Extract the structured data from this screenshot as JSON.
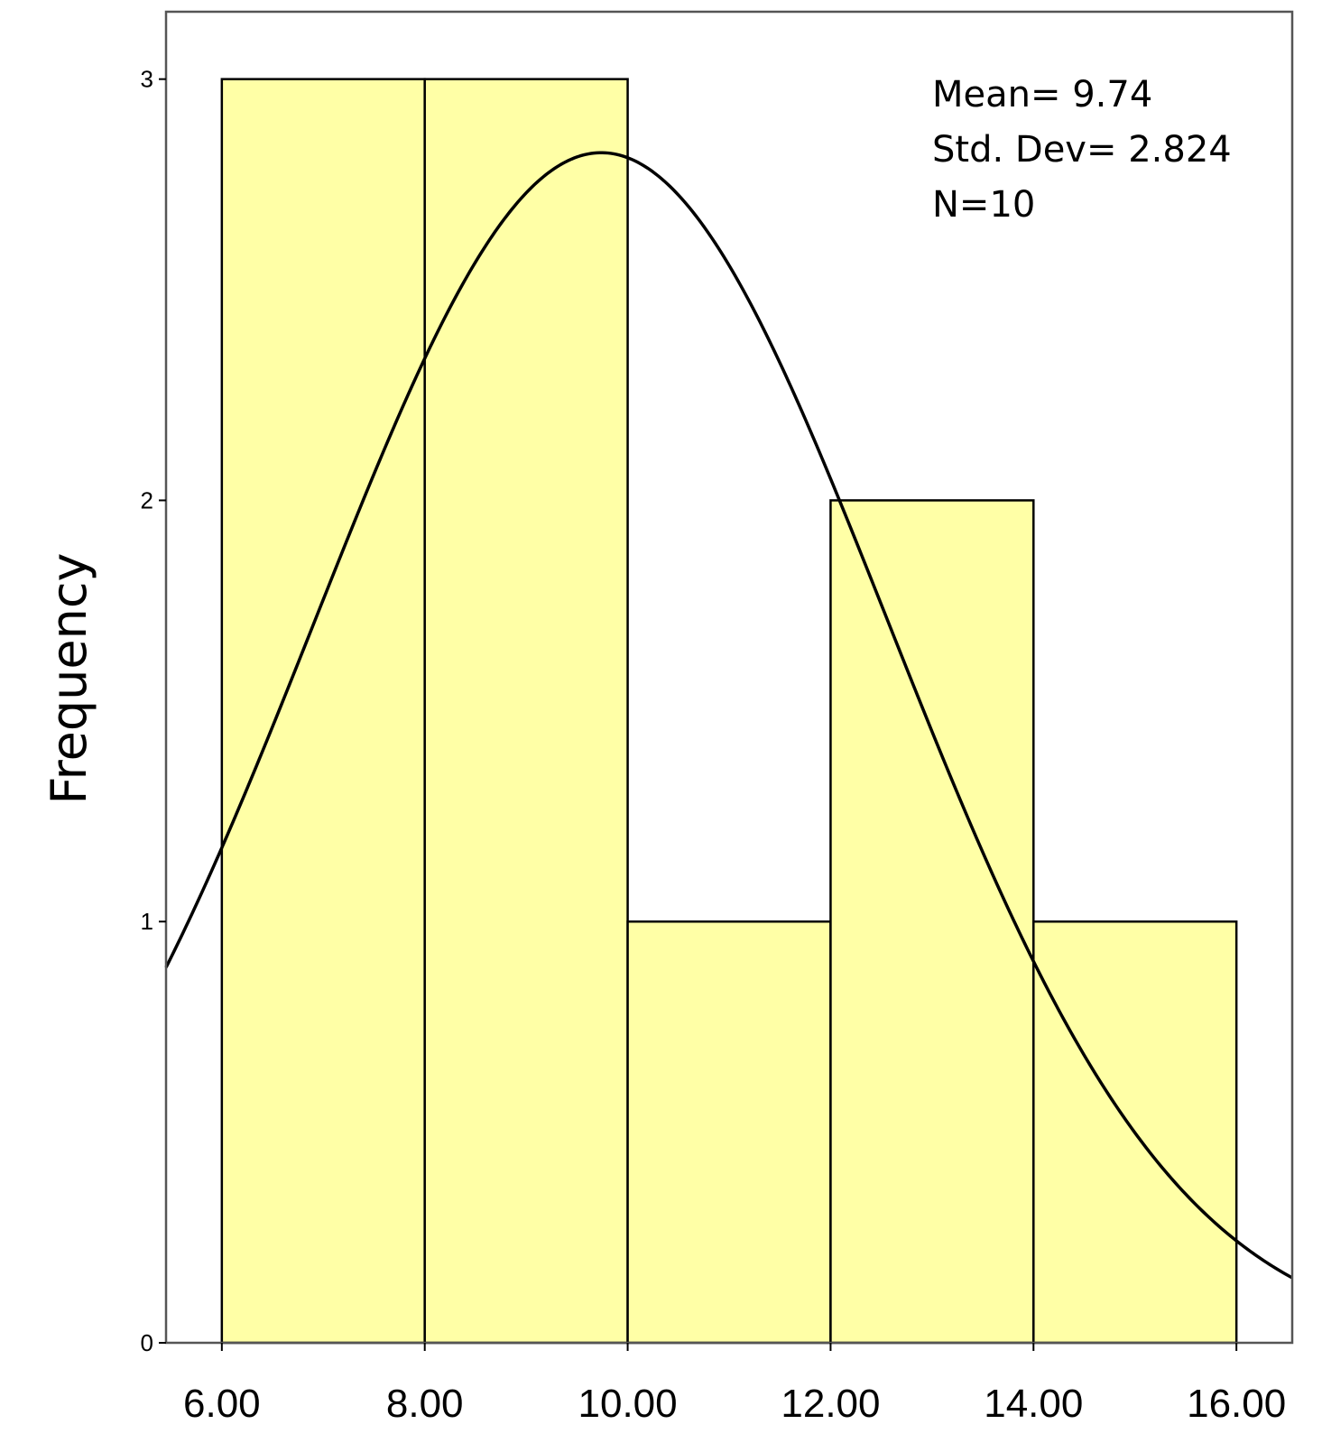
{
  "chart_data": {
    "type": "bar",
    "subtype": "histogram",
    "title": "",
    "xlabel": "",
    "ylabel": "Frequency",
    "bins": [
      {
        "start": 6,
        "end": 8,
        "value": 3
      },
      {
        "start": 8,
        "end": 10,
        "value": 3
      },
      {
        "start": 10,
        "end": 12,
        "value": 1
      },
      {
        "start": 12,
        "end": 14,
        "value": 2
      },
      {
        "start": 14,
        "end": 16,
        "value": 1
      }
    ],
    "xlim": [
      5.45,
      16.55
    ],
    "ylim": [
      0,
      3.16
    ],
    "x_ticks": [
      6,
      8,
      10,
      12,
      14,
      16
    ],
    "x_tick_labels": [
      "6.00",
      "8.00",
      "10.00",
      "12.00",
      "14.00",
      "16.00"
    ],
    "y_ticks": [
      0,
      1,
      2,
      3
    ],
    "y_tick_labels": [
      "0",
      "1",
      "2",
      "3"
    ],
    "normal_curve": {
      "mean": 9.74,
      "std_dev": 2.824,
      "n": 10,
      "bin_width": 2
    },
    "stats_box": {
      "mean_label": "Mean= 9.74",
      "std_label": "Std. Dev= 2.824",
      "n_label": "N=10"
    },
    "colors": {
      "bar_fill": "#ffffa6",
      "bar_stroke": "#000000",
      "curve": "#000000",
      "frame": "#555555"
    }
  }
}
